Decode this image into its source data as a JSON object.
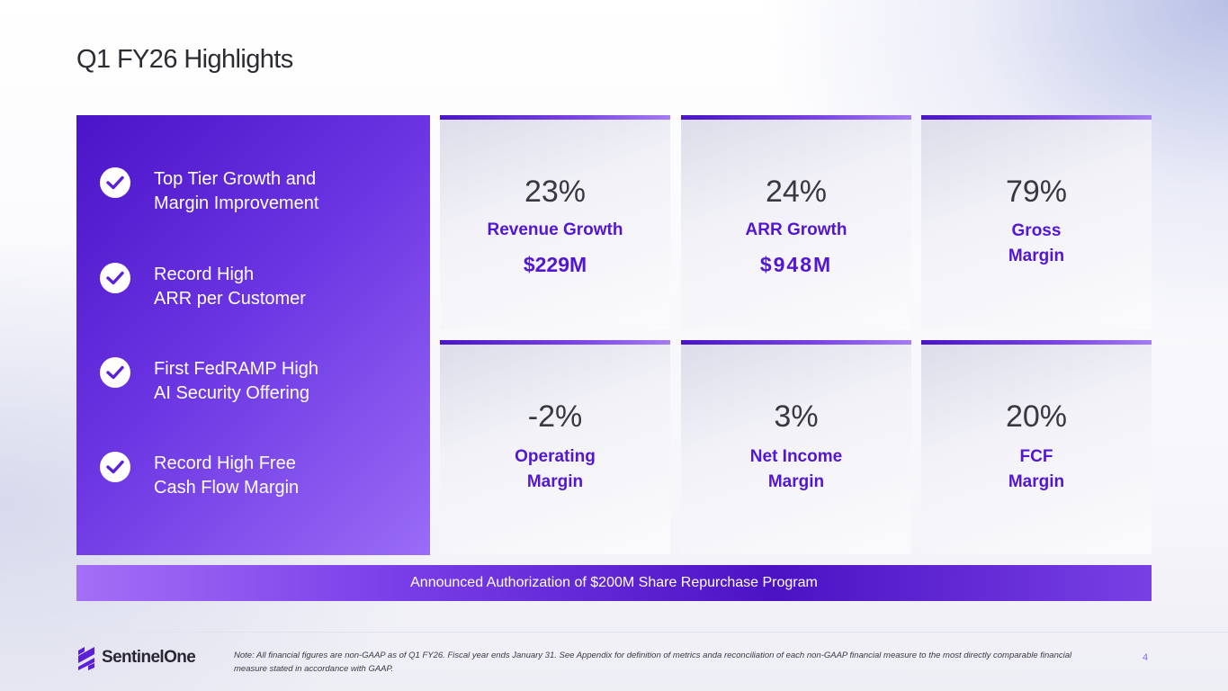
{
  "slide": {
    "title": "Q1 FY26 Highlights",
    "page_number": "4"
  },
  "highlights": [
    {
      "line1": "Top Tier Growth and",
      "line2": "Margin Improvement"
    },
    {
      "line1": "Record High",
      "line2": "ARR per Customer"
    },
    {
      "line1": "First FedRAMP High",
      "line2": "AI Security Offering"
    },
    {
      "line1": "Record High Free",
      "line2": "Cash Flow Margin"
    }
  ],
  "metrics": [
    {
      "value": "23%",
      "label": "Revenue Growth",
      "amount": "$229M"
    },
    {
      "value": "24%",
      "label": "ARR Growth",
      "amount": "$948M"
    },
    {
      "value": "79%",
      "label_line1": "Gross",
      "label_line2": "Margin"
    },
    {
      "value": "-2%",
      "label_line1": "Operating",
      "label_line2": "Margin"
    },
    {
      "value": "3%",
      "label_line1": "Net Income",
      "label_line2": "Margin"
    },
    {
      "value": "20%",
      "label_line1": "FCF",
      "label_line2": "Margin"
    }
  ],
  "banner": {
    "text": "Announced Authorization of $200M Share Repurchase Program"
  },
  "footer": {
    "logo_text": "SentinelOne",
    "note": "Note: All financial figures are non-GAAP as of Q1 FY26. Fiscal year ends January 31. See Appendix for definition of metrics anda reconciliation of each non-GAAP financial measure to the most directly comparable financial measure stated in accordance with GAAP."
  },
  "colors": {
    "brand_purple": "#5316d2",
    "panel_gradient_start": "#4a14c8",
    "panel_gradient_end": "#9a6cf6"
  }
}
